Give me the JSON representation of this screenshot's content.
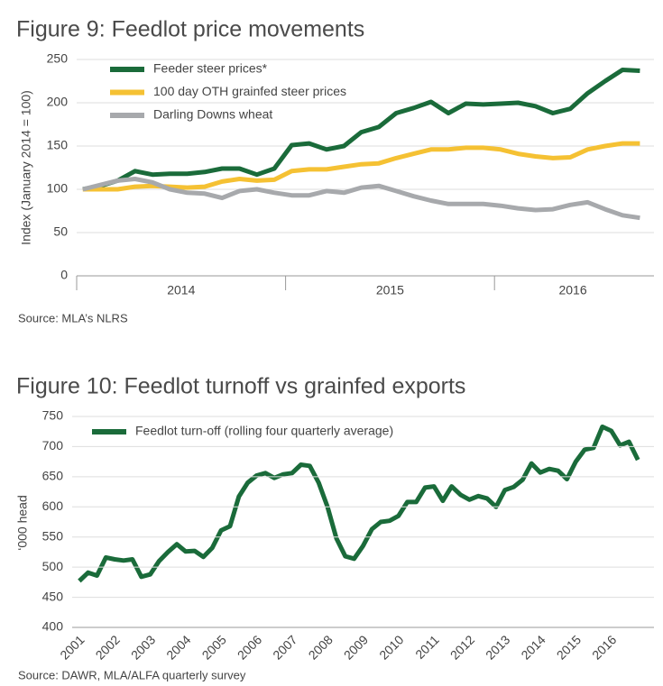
{
  "chart_data": [
    {
      "type": "line",
      "title": "Figure 9: Feedlot price movements",
      "y_label": "Index (January 2014 = 100)",
      "source": "Source: MLA’s NLRS",
      "categories": [
        null,
        null,
        null,
        null,
        null,
        null,
        null,
        null,
        null,
        null,
        null,
        null,
        null,
        null,
        null,
        null,
        null,
        null,
        null,
        null,
        null,
        null,
        null,
        null,
        null,
        null,
        null,
        null,
        null,
        null,
        null,
        null,
        null
      ],
      "x_groups": [
        {
          "label": "2014",
          "size": 12
        },
        {
          "label": "2015",
          "size": 12
        },
        {
          "label": "2016",
          "size": 9
        }
      ],
      "ylim": [
        0,
        250
      ],
      "yticks": [
        0,
        50,
        100,
        150,
        200,
        250
      ],
      "grid": true,
      "series": [
        {
          "name": "Feeder steer prices*",
          "color": "#1a6b3a",
          "values": [
            100,
            104,
            110,
            121,
            117,
            118,
            118,
            120,
            124,
            124,
            117,
            124,
            151,
            153,
            146,
            150,
            166,
            172,
            188,
            194,
            201,
            188,
            199,
            198,
            199,
            200,
            196,
            188,
            193,
            211,
            225,
            238,
            237
          ]
        },
        {
          "name": "100 day OTH grainfed steer prices",
          "color": "#f5c133",
          "values": [
            100,
            100,
            100,
            103,
            104,
            103,
            102,
            103,
            109,
            112,
            110,
            111,
            121,
            123,
            123,
            126,
            129,
            130,
            136,
            141,
            146,
            146,
            148,
            148,
            146,
            141,
            138,
            136,
            137,
            146,
            150,
            153,
            153
          ]
        },
        {
          "name": "Darling Downs wheat",
          "color": "#a7a9ac",
          "values": [
            100,
            105,
            110,
            112,
            108,
            100,
            96,
            95,
            90,
            98,
            100,
            96,
            93,
            93,
            98,
            96,
            102,
            104,
            98,
            92,
            87,
            83,
            83,
            83,
            81,
            78,
            76,
            77,
            82,
            85,
            77,
            70,
            67
          ]
        }
      ]
    },
    {
      "type": "line",
      "title": "Figure 10: Feedlot turnoff vs grainfed exports",
      "y_label": "‘000 head",
      "source": "Source: DAWR, MLA/ALFA quarterly survey",
      "categories": [
        "2001",
        null,
        null,
        null,
        "2002",
        null,
        null,
        null,
        "2003",
        null,
        null,
        null,
        "2004",
        null,
        null,
        null,
        "2005",
        null,
        null,
        null,
        "2006",
        null,
        null,
        null,
        "2007",
        null,
        null,
        null,
        "2008",
        null,
        null,
        null,
        "2009",
        null,
        null,
        null,
        "2010",
        null,
        null,
        null,
        "2011",
        null,
        null,
        null,
        "2012",
        null,
        null,
        null,
        "2013",
        null,
        null,
        null,
        "2014",
        null,
        null,
        null,
        "2015",
        null,
        null,
        null,
        "2016",
        null,
        null,
        null
      ],
      "ylim": [
        400,
        750
      ],
      "yticks": [
        400,
        450,
        500,
        550,
        600,
        650,
        700,
        750
      ],
      "grid": true,
      "series": [
        {
          "name": "Feedlot turn-off (rolling four quarterly average)",
          "color": "#1a6b3a",
          "values": [
            477,
            491,
            486,
            516,
            513,
            511,
            513,
            484,
            488,
            510,
            525,
            538,
            526,
            527,
            517,
            532,
            561,
            568,
            617,
            640,
            652,
            656,
            648,
            654,
            656,
            670,
            668,
            640,
            600,
            548,
            518,
            514,
            535,
            563,
            575,
            577,
            585,
            608,
            608,
            632,
            634,
            610,
            634,
            620,
            612,
            618,
            614,
            600,
            628,
            633,
            645,
            672,
            657,
            663,
            660,
            646,
            675,
            695,
            698,
            733,
            726,
            702,
            708,
            678
          ]
        }
      ]
    }
  ]
}
